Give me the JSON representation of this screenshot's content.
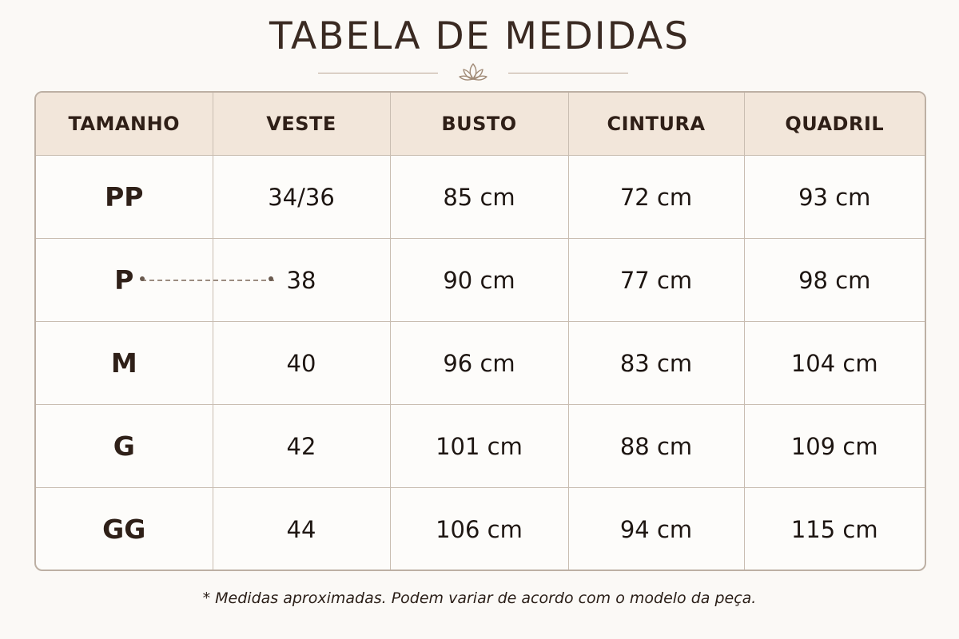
{
  "title": "TABELA DE MEDIDAS",
  "ornament_icon": "lotus-icon",
  "table": {
    "headers": [
      "TAMANHO",
      "VESTE",
      "BUSTO",
      "CINTURA",
      "QUADRIL"
    ],
    "rows": [
      {
        "size": "PP",
        "veste": "34/36",
        "busto": "85 cm",
        "cintura": "72 cm",
        "quadril": "93 cm"
      },
      {
        "size": "P",
        "veste": "38",
        "busto": "90 cm",
        "cintura": "77 cm",
        "quadril": "98 cm"
      },
      {
        "size": "M",
        "veste": "40",
        "busto": "96 cm",
        "cintura": "83 cm",
        "quadril": "104 cm"
      },
      {
        "size": "G",
        "veste": "42",
        "busto": "101 cm",
        "cintura": "88 cm",
        "quadril": "109 cm"
      },
      {
        "size": "GG",
        "veste": "44",
        "busto": "106 cm",
        "cintura": "94 cm",
        "quadril": "115 cm"
      }
    ]
  },
  "footnote": "* Medidas aproximadas. Podem variar de acordo com o modelo da peça.",
  "colors": {
    "background": "#fbf9f6",
    "header_background": "#f2e6da",
    "border": "#bdb0a4",
    "text": "#2a1c15"
  }
}
